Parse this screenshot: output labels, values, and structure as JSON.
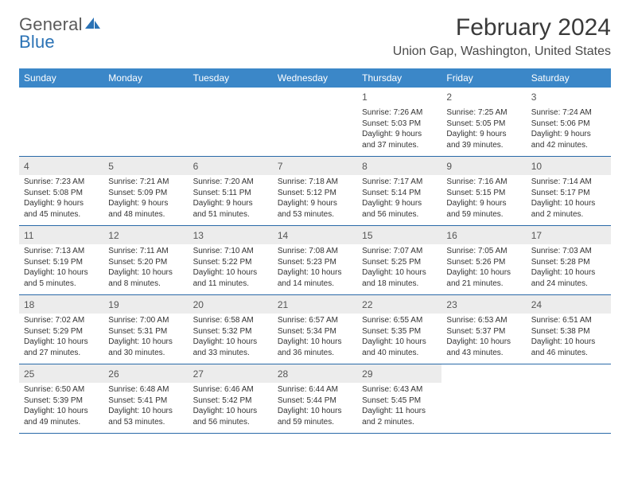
{
  "brand": {
    "text_general": "General",
    "text_blue": "Blue",
    "icon_color": "#2a72b5"
  },
  "title": "February 2024",
  "location": "Union Gap, Washington, United States",
  "colors": {
    "header_bg": "#3b87c8",
    "header_text": "#ffffff",
    "week_border": "#2a6aa8",
    "shaded_bg": "#ececec",
    "body_text": "#333333",
    "daynum_text": "#555555"
  },
  "weekdays": [
    "Sunday",
    "Monday",
    "Tuesday",
    "Wednesday",
    "Thursday",
    "Friday",
    "Saturday"
  ],
  "weeks": [
    {
      "shaded": false,
      "days": [
        {
          "n": "",
          "sunrise": "",
          "sunset": "",
          "daylight": ""
        },
        {
          "n": "",
          "sunrise": "",
          "sunset": "",
          "daylight": ""
        },
        {
          "n": "",
          "sunrise": "",
          "sunset": "",
          "daylight": ""
        },
        {
          "n": "",
          "sunrise": "",
          "sunset": "",
          "daylight": ""
        },
        {
          "n": "1",
          "sunrise": "Sunrise: 7:26 AM",
          "sunset": "Sunset: 5:03 PM",
          "daylight": "Daylight: 9 hours and 37 minutes."
        },
        {
          "n": "2",
          "sunrise": "Sunrise: 7:25 AM",
          "sunset": "Sunset: 5:05 PM",
          "daylight": "Daylight: 9 hours and 39 minutes."
        },
        {
          "n": "3",
          "sunrise": "Sunrise: 7:24 AM",
          "sunset": "Sunset: 5:06 PM",
          "daylight": "Daylight: 9 hours and 42 minutes."
        }
      ]
    },
    {
      "shaded": true,
      "days": [
        {
          "n": "4",
          "sunrise": "Sunrise: 7:23 AM",
          "sunset": "Sunset: 5:08 PM",
          "daylight": "Daylight: 9 hours and 45 minutes."
        },
        {
          "n": "5",
          "sunrise": "Sunrise: 7:21 AM",
          "sunset": "Sunset: 5:09 PM",
          "daylight": "Daylight: 9 hours and 48 minutes."
        },
        {
          "n": "6",
          "sunrise": "Sunrise: 7:20 AM",
          "sunset": "Sunset: 5:11 PM",
          "daylight": "Daylight: 9 hours and 51 minutes."
        },
        {
          "n": "7",
          "sunrise": "Sunrise: 7:18 AM",
          "sunset": "Sunset: 5:12 PM",
          "daylight": "Daylight: 9 hours and 53 minutes."
        },
        {
          "n": "8",
          "sunrise": "Sunrise: 7:17 AM",
          "sunset": "Sunset: 5:14 PM",
          "daylight": "Daylight: 9 hours and 56 minutes."
        },
        {
          "n": "9",
          "sunrise": "Sunrise: 7:16 AM",
          "sunset": "Sunset: 5:15 PM",
          "daylight": "Daylight: 9 hours and 59 minutes."
        },
        {
          "n": "10",
          "sunrise": "Sunrise: 7:14 AM",
          "sunset": "Sunset: 5:17 PM",
          "daylight": "Daylight: 10 hours and 2 minutes."
        }
      ]
    },
    {
      "shaded": true,
      "days": [
        {
          "n": "11",
          "sunrise": "Sunrise: 7:13 AM",
          "sunset": "Sunset: 5:19 PM",
          "daylight": "Daylight: 10 hours and 5 minutes."
        },
        {
          "n": "12",
          "sunrise": "Sunrise: 7:11 AM",
          "sunset": "Sunset: 5:20 PM",
          "daylight": "Daylight: 10 hours and 8 minutes."
        },
        {
          "n": "13",
          "sunrise": "Sunrise: 7:10 AM",
          "sunset": "Sunset: 5:22 PM",
          "daylight": "Daylight: 10 hours and 11 minutes."
        },
        {
          "n": "14",
          "sunrise": "Sunrise: 7:08 AM",
          "sunset": "Sunset: 5:23 PM",
          "daylight": "Daylight: 10 hours and 14 minutes."
        },
        {
          "n": "15",
          "sunrise": "Sunrise: 7:07 AM",
          "sunset": "Sunset: 5:25 PM",
          "daylight": "Daylight: 10 hours and 18 minutes."
        },
        {
          "n": "16",
          "sunrise": "Sunrise: 7:05 AM",
          "sunset": "Sunset: 5:26 PM",
          "daylight": "Daylight: 10 hours and 21 minutes."
        },
        {
          "n": "17",
          "sunrise": "Sunrise: 7:03 AM",
          "sunset": "Sunset: 5:28 PM",
          "daylight": "Daylight: 10 hours and 24 minutes."
        }
      ]
    },
    {
      "shaded": true,
      "days": [
        {
          "n": "18",
          "sunrise": "Sunrise: 7:02 AM",
          "sunset": "Sunset: 5:29 PM",
          "daylight": "Daylight: 10 hours and 27 minutes."
        },
        {
          "n": "19",
          "sunrise": "Sunrise: 7:00 AM",
          "sunset": "Sunset: 5:31 PM",
          "daylight": "Daylight: 10 hours and 30 minutes."
        },
        {
          "n": "20",
          "sunrise": "Sunrise: 6:58 AM",
          "sunset": "Sunset: 5:32 PM",
          "daylight": "Daylight: 10 hours and 33 minutes."
        },
        {
          "n": "21",
          "sunrise": "Sunrise: 6:57 AM",
          "sunset": "Sunset: 5:34 PM",
          "daylight": "Daylight: 10 hours and 36 minutes."
        },
        {
          "n": "22",
          "sunrise": "Sunrise: 6:55 AM",
          "sunset": "Sunset: 5:35 PM",
          "daylight": "Daylight: 10 hours and 40 minutes."
        },
        {
          "n": "23",
          "sunrise": "Sunrise: 6:53 AM",
          "sunset": "Sunset: 5:37 PM",
          "daylight": "Daylight: 10 hours and 43 minutes."
        },
        {
          "n": "24",
          "sunrise": "Sunrise: 6:51 AM",
          "sunset": "Sunset: 5:38 PM",
          "daylight": "Daylight: 10 hours and 46 minutes."
        }
      ]
    },
    {
      "shaded": true,
      "days": [
        {
          "n": "25",
          "sunrise": "Sunrise: 6:50 AM",
          "sunset": "Sunset: 5:39 PM",
          "daylight": "Daylight: 10 hours and 49 minutes."
        },
        {
          "n": "26",
          "sunrise": "Sunrise: 6:48 AM",
          "sunset": "Sunset: 5:41 PM",
          "daylight": "Daylight: 10 hours and 53 minutes."
        },
        {
          "n": "27",
          "sunrise": "Sunrise: 6:46 AM",
          "sunset": "Sunset: 5:42 PM",
          "daylight": "Daylight: 10 hours and 56 minutes."
        },
        {
          "n": "28",
          "sunrise": "Sunrise: 6:44 AM",
          "sunset": "Sunset: 5:44 PM",
          "daylight": "Daylight: 10 hours and 59 minutes."
        },
        {
          "n": "29",
          "sunrise": "Sunrise: 6:43 AM",
          "sunset": "Sunset: 5:45 PM",
          "daylight": "Daylight: 11 hours and 2 minutes."
        },
        {
          "n": "",
          "sunrise": "",
          "sunset": "",
          "daylight": ""
        },
        {
          "n": "",
          "sunrise": "",
          "sunset": "",
          "daylight": ""
        }
      ]
    }
  ]
}
